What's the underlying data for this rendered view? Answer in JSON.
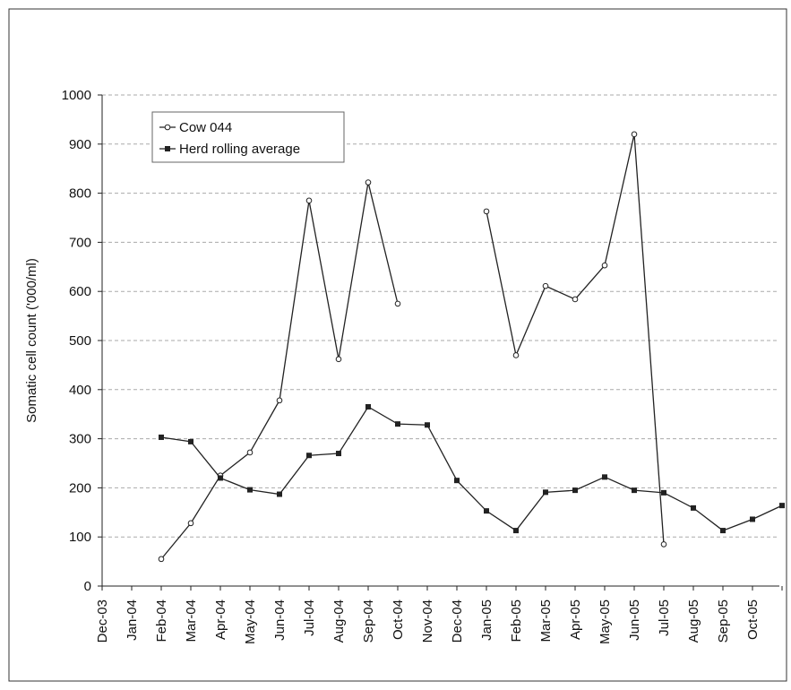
{
  "chart_data": {
    "type": "line",
    "y_label": "Somatic cell count ('000/ml)",
    "categories": [
      "Dec-03",
      "Jan-04",
      "Feb-04",
      "Mar-04",
      "Apr-04",
      "May-04",
      "Jun-04",
      "Jul-04",
      "Aug-04",
      "Sep-04",
      "Oct-04",
      "Nov-04",
      "Dec-04",
      "Jan-05",
      "Feb-05",
      "Mar-05",
      "Apr-05",
      "May-05",
      "Jun-05",
      "Jul-05",
      "Aug-05",
      "Sep-05",
      "Oct-05",
      null
    ],
    "series": [
      {
        "name": "Cow 044",
        "color": "#222222",
        "marker": "open-circle",
        "values": [
          null,
          null,
          55,
          128,
          225,
          272,
          378,
          785,
          462,
          822,
          575,
          null,
          null,
          763,
          470,
          611,
          584,
          653,
          920,
          85,
          null,
          null,
          null,
          null
        ]
      },
      {
        "name": "Herd rolling average",
        "color": "#222222",
        "marker": "filled-square",
        "values": [
          null,
          null,
          303,
          294,
          220,
          196,
          187,
          266,
          270,
          365,
          330,
          328,
          215,
          153,
          113,
          191,
          195,
          222,
          195,
          190,
          159,
          113,
          136,
          164
        ]
      }
    ],
    "ylim": [
      0,
      1000
    ],
    "yticks": [
      0,
      100,
      200,
      300,
      400,
      500,
      600,
      700,
      800,
      900,
      1000
    ],
    "grid": true,
    "legend": "top-left"
  }
}
